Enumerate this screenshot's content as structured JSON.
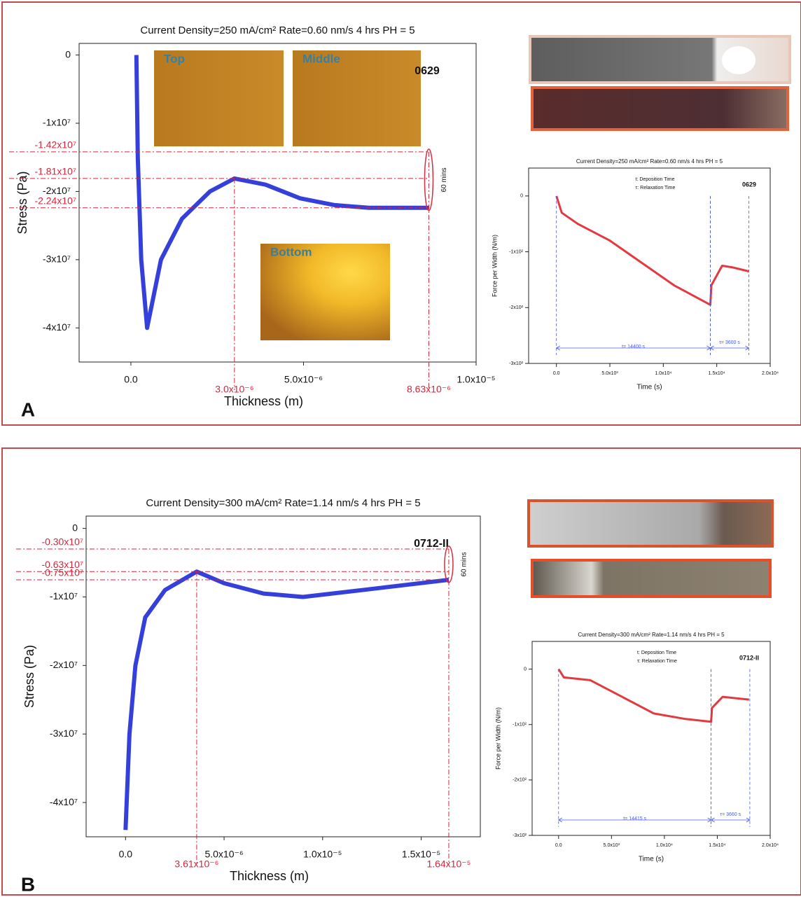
{
  "chart_data": [
    {
      "type": "line",
      "panel_label": "A",
      "title": "Current Density=250 mA/cm²  Rate=0.60 nm/s    4 hrs     PH = 5",
      "sample_label": "0629",
      "x_label": "Thickness (m)",
      "y_label": "Stress (Pa)",
      "xlim": [
        -1.5e-06,
        1e-05
      ],
      "ylim": [
        -45000000,
        1700000
      ],
      "xticks": [
        {
          "value": 0,
          "label": "0.0"
        },
        {
          "value": 5e-06,
          "label": "5.0x10⁻⁶"
        },
        {
          "value": 1e-05,
          "label": "1.0x10⁻⁵"
        }
      ],
      "yticks": [
        0,
        {
          "value": -10000000,
          "label": "-1x10⁷"
        },
        {
          "value": -20000000,
          "label": "-2x10⁷"
        },
        {
          "value": -30000000,
          "label": "-3x10⁷"
        },
        {
          "value": -40000000,
          "label": "-4x10⁷"
        }
      ],
      "color": "#1f2bd6",
      "x": [
        1.6e-07,
        2e-07,
        3e-07,
        4.7e-07,
        8.7e-07,
        1.48e-06,
        2.29e-06,
        3e-06,
        3.9e-06,
        4.9e-06,
        5.9e-06,
        6.9e-06,
        8.63e-06
      ],
      "values": [
        0,
        -15000000,
        -30000000,
        -40000000,
        -30000000,
        -24000000,
        -20000000,
        -18100000,
        -19000000,
        -21000000,
        -22000000,
        -22400000,
        -22400000
      ],
      "ref_color": "#d9243a",
      "ref_lines_y": [
        {
          "value": -14200000,
          "label": "-1.42x10⁷"
        },
        {
          "value": -18100000,
          "label": "-1.81x10⁷"
        },
        {
          "value": -22400000,
          "label": "-2.24x10⁷"
        }
      ],
      "ref_lines_x": [
        {
          "value": 3e-06,
          "label": "3.0x10⁻⁶"
        },
        {
          "value": 8.63e-06,
          "label": "8.63x10⁻⁶"
        }
      ],
      "annotation": "60 mins",
      "insets": [
        "Top",
        "Middle",
        "Bottom"
      ]
    },
    {
      "type": "line",
      "title": "Current Density=250 mA/cm²  Rate=0.60 nm/s     4 hrs     PH = 5",
      "sample_label": "0629",
      "x_label": "Time (s)",
      "y_label": "Force per Width (N/m)",
      "xlim": [
        -2600,
        20000
      ],
      "ylim": [
        -300,
        50
      ],
      "xticks": [
        {
          "value": 0,
          "label": "0.0"
        },
        {
          "value": 5000,
          "label": "5.0x10³"
        },
        {
          "value": 10000,
          "label": "1.0x10⁴"
        },
        {
          "value": 15000,
          "label": "1.5x10⁴"
        },
        {
          "value": 20000,
          "label": "2.0x10⁴"
        }
      ],
      "yticks": [
        0,
        {
          "value": -100,
          "label": "-1x10²"
        },
        {
          "value": -200,
          "label": "-2x10²"
        },
        {
          "value": -300,
          "label": "-3x10²"
        }
      ],
      "color": "#e0242a",
      "x": [
        0,
        500,
        2000,
        5000,
        8000,
        11000,
        14400,
        14500,
        15500,
        16500,
        18000
      ],
      "values": [
        0,
        -30,
        -50,
        -80,
        -120,
        -160,
        -195,
        -160,
        -125,
        -128,
        -135
      ],
      "interval_color": "#4a5be0",
      "intervals": [
        {
          "from": 0,
          "to": 14400,
          "label": "t= 14400 s"
        },
        {
          "from": 14400,
          "to": 18000,
          "label": "τ= 3600 s"
        }
      ],
      "annotations": [
        "t: Deposition Time",
        "τ: Relaxation Time"
      ]
    },
    {
      "type": "line",
      "panel_label": "B",
      "title": "Current Density=300 mA/cm²   Rate=1.14 nm/s     4 hrs      PH = 5",
      "sample_label": "0712-II",
      "x_label": "Thickness (m)",
      "y_label": "Stress (Pa)",
      "xlim": [
        -2e-06,
        1.8e-05
      ],
      "ylim": [
        -45000000,
        1800000
      ],
      "xticks": [
        {
          "value": 0,
          "label": "0.0"
        },
        {
          "value": 5e-06,
          "label": "5.0x10⁻⁶"
        },
        {
          "value": 1e-05,
          "label": "1.0x10⁻⁵"
        },
        {
          "value": 1.5e-05,
          "label": "1.5x10⁻⁵"
        }
      ],
      "yticks": [
        0,
        {
          "value": -10000000,
          "label": "-1x10⁷"
        },
        {
          "value": -20000000,
          "label": "-2x10⁷"
        },
        {
          "value": -30000000,
          "label": "-3x10⁷"
        },
        {
          "value": -40000000,
          "label": "-4x10⁷"
        }
      ],
      "color": "#1f2bd6",
      "x": [
        0,
        2e-07,
        5e-07,
        1e-06,
        2e-06,
        3.61e-06,
        5e-06,
        7e-06,
        9e-06,
        1.2e-05,
        1.64e-05
      ],
      "values": [
        -44000000,
        -30000000,
        -20000000,
        -13000000,
        -9000000,
        -6300000,
        -8000000,
        -9500000,
        -10000000,
        -9000000,
        -7500000
      ],
      "ref_color": "#d9243a",
      "ref_lines_y": [
        {
          "value": -3000000,
          "label": "-0.30x10⁷"
        },
        {
          "value": -6300000,
          "label": "-0.63x10⁷"
        },
        {
          "value": -7500000,
          "label": "-0.75x10⁷"
        }
      ],
      "ref_lines_x": [
        {
          "value": 3.61e-06,
          "label": "3.61x10⁻⁶"
        },
        {
          "value": 1.64e-05,
          "label": "1.64x10⁻⁵"
        }
      ],
      "annotation": "60 mins"
    },
    {
      "type": "line",
      "title": "Current Density=300 mA/cm²  Rate=1.14 nm/s     4 hrs     PH = 5",
      "sample_label": "0712-II",
      "x_label": "Time (s)",
      "y_label": "Force per Width (N/m)",
      "xlim": [
        -2500,
        20000
      ],
      "ylim": [
        -300,
        50
      ],
      "xticks": [
        {
          "value": 0,
          "label": "0.0"
        },
        {
          "value": 5000,
          "label": "5.0x10³"
        },
        {
          "value": 10000,
          "label": "1.0x10⁴"
        },
        {
          "value": 15000,
          "label": "1.5x10⁴"
        },
        {
          "value": 20000,
          "label": "2.0x10⁴"
        }
      ],
      "yticks": [
        0,
        {
          "value": -100,
          "label": "-1x10²"
        },
        {
          "value": -200,
          "label": "-2x10²"
        },
        {
          "value": -300,
          "label": "-3x10²"
        }
      ],
      "color": "#e0242a",
      "x": [
        0,
        500,
        3000,
        6000,
        9000,
        12000,
        14415,
        14500,
        15500,
        18000
      ],
      "values": [
        0,
        -15,
        -20,
        -50,
        -80,
        -90,
        -95,
        -70,
        -50,
        -55
      ],
      "interval_color": "#4a5be0",
      "intervals": [
        {
          "from": 0,
          "to": 14415,
          "label": "t= 14415 s"
        },
        {
          "from": 14415,
          "to": 18075,
          "label": "τ= 3660 s"
        }
      ],
      "annotations": [
        "t: Deposition Time",
        "τ: Relaxation Time"
      ]
    }
  ]
}
